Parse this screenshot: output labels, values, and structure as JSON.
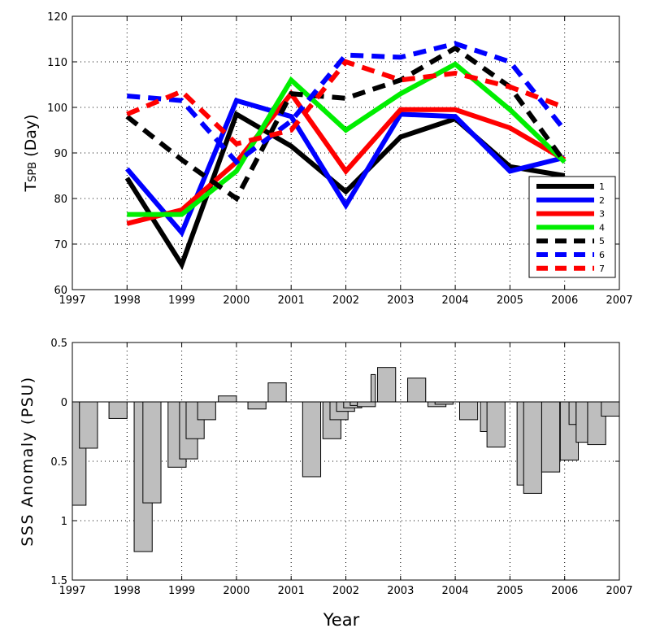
{
  "chart_data": [
    {
      "type": "line",
      "ylabel_main": "T",
      "ylabel_sub": "SPB",
      "ylabel_rest": " (Day)",
      "xlim": [
        1997,
        2007
      ],
      "ylim": [
        60,
        120
      ],
      "xticks": [
        1997,
        1998,
        1999,
        2000,
        2001,
        2002,
        2003,
        2004,
        2005,
        2006,
        2007
      ],
      "yticks": [
        60,
        70,
        80,
        90,
        100,
        110,
        120
      ],
      "grid": true,
      "legend_position": "lower-right",
      "x": [
        1998,
        1999,
        2000,
        2001,
        2002,
        2003,
        2004,
        2005,
        2006
      ],
      "series": [
        {
          "name": "1",
          "color": "#000000",
          "dashed": false,
          "values": [
            84.5,
            65.5,
            98.5,
            91.5,
            81.5,
            93.5,
            97.5,
            87,
            85
          ]
        },
        {
          "name": "2",
          "color": "#0000ff",
          "dashed": false,
          "values": [
            86.5,
            72.5,
            101.5,
            98,
            78.5,
            98.5,
            98,
            86,
            89
          ]
        },
        {
          "name": "3",
          "color": "#ff0000",
          "dashed": false,
          "values": [
            74.5,
            77.5,
            88,
            103,
            86,
            99.5,
            99.5,
            95.5,
            88.5
          ]
        },
        {
          "name": "4",
          "color": "#00ee00",
          "dashed": false,
          "values": [
            76.5,
            76.5,
            86,
            106,
            95,
            103,
            109.5,
            99.5,
            88
          ]
        },
        {
          "name": "5",
          "color": "#000000",
          "dashed": true,
          "values": [
            98,
            88.5,
            80,
            103,
            102,
            106,
            113,
            104.5,
            88
          ]
        },
        {
          "name": "6",
          "color": "#0000ff",
          "dashed": true,
          "values": [
            102.5,
            101.5,
            88,
            97,
            111.5,
            111,
            114,
            110,
            95
          ]
        },
        {
          "name": "7",
          "color": "#ff0000",
          "dashed": true,
          "values": [
            98.5,
            103.5,
            92,
            95,
            110,
            106,
            107.5,
            104.5,
            100
          ]
        }
      ]
    },
    {
      "type": "bar",
      "ylabel": "SSS Anomaly  (PSU)",
      "xlabel": "Year",
      "xlim": [
        1997,
        2007
      ],
      "ylim": [
        -1.5,
        0.5
      ],
      "y_reversed_labels": true,
      "xticks": [
        1997,
        1998,
        1999,
        2000,
        2001,
        2002,
        2003,
        2004,
        2005,
        2006,
        2007
      ],
      "ytick_values": [
        0.5,
        0,
        -0.5,
        -1,
        -1.5
      ],
      "ytick_labels": [
        "0.5",
        "0",
        "0.5",
        "1",
        "1.5"
      ],
      "grid": true,
      "bar_color": "#bebebe",
      "bars": [
        {
          "start": 1997.0,
          "width": 0.25,
          "value": -0.87
        },
        {
          "start": 1997.13,
          "width": 0.33,
          "value": -0.39
        },
        {
          "start": 1997.67,
          "width": 0.33,
          "value": -0.14
        },
        {
          "start": 1998.13,
          "width": 0.33,
          "value": -1.26
        },
        {
          "start": 1998.29,
          "width": 0.33,
          "value": -0.85
        },
        {
          "start": 1998.75,
          "width": 0.33,
          "value": -0.55
        },
        {
          "start": 1998.96,
          "width": 0.33,
          "value": -0.48
        },
        {
          "start": 1999.08,
          "width": 0.33,
          "value": -0.31
        },
        {
          "start": 1999.29,
          "width": 0.33,
          "value": -0.15
        },
        {
          "start": 1999.67,
          "width": 0.33,
          "value": 0.05
        },
        {
          "start": 2000.21,
          "width": 0.33,
          "value": -0.06
        },
        {
          "start": 2000.58,
          "width": 0.33,
          "value": 0.16
        },
        {
          "start": 2001.21,
          "width": 0.33,
          "value": -0.63
        },
        {
          "start": 2001.58,
          "width": 0.33,
          "value": -0.31
        },
        {
          "start": 2001.71,
          "width": 0.33,
          "value": -0.15
        },
        {
          "start": 2001.83,
          "width": 0.33,
          "value": -0.08
        },
        {
          "start": 2001.96,
          "width": 0.33,
          "value": -0.05
        },
        {
          "start": 2002.08,
          "width": 0.33,
          "value": -0.03
        },
        {
          "start": 2002.21,
          "width": 0.33,
          "value": -0.04
        },
        {
          "start": 2002.46,
          "width": 0.08,
          "value": 0.23
        },
        {
          "start": 2002.58,
          "width": 0.33,
          "value": 0.29
        },
        {
          "start": 2003.13,
          "width": 0.33,
          "value": 0.2
        },
        {
          "start": 2003.5,
          "width": 0.33,
          "value": -0.04
        },
        {
          "start": 2003.63,
          "width": 0.33,
          "value": -0.02
        },
        {
          "start": 2004.08,
          "width": 0.33,
          "value": -0.15
        },
        {
          "start": 2004.46,
          "width": 0.13,
          "value": -0.25
        },
        {
          "start": 2004.58,
          "width": 0.33,
          "value": -0.38
        },
        {
          "start": 2005.13,
          "width": 0.13,
          "value": -0.7
        },
        {
          "start": 2005.25,
          "width": 0.33,
          "value": -0.77
        },
        {
          "start": 2005.58,
          "width": 0.33,
          "value": -0.59
        },
        {
          "start": 2005.92,
          "width": 0.33,
          "value": -0.49
        },
        {
          "start": 2006.08,
          "width": 0.13,
          "value": -0.19
        },
        {
          "start": 2006.21,
          "width": 0.21,
          "value": -0.34
        },
        {
          "start": 2006.42,
          "width": 0.33,
          "value": -0.36
        },
        {
          "start": 2006.67,
          "width": 0.33,
          "value": -0.12
        }
      ]
    }
  ]
}
